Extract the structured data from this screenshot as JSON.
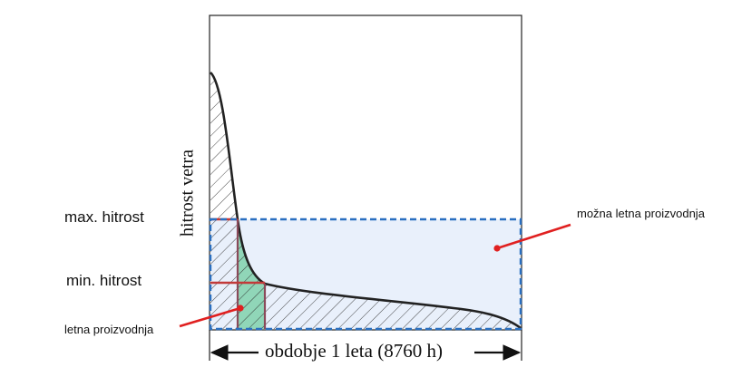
{
  "labels": {
    "y_axis": "hitrost vetra",
    "max_speed": "max. hitrost",
    "min_speed": "min. hitrost",
    "possible_production": "možna letna proizvodnja",
    "annual_production": "letna proizvodnja",
    "period": "obdobje 1 leta (8760 h)"
  },
  "colors": {
    "curve": "#222222",
    "frame": "#222222",
    "hatch": "#333333",
    "dashed_box": "#2a6fc0",
    "box_fill": "#e9f0fb",
    "production_fill": "#80d1ac",
    "max_line": "#c23a3a",
    "min_line": "#c23a3a",
    "inner_lines": "#8a4a5a",
    "pointer": "#e02020"
  }
}
